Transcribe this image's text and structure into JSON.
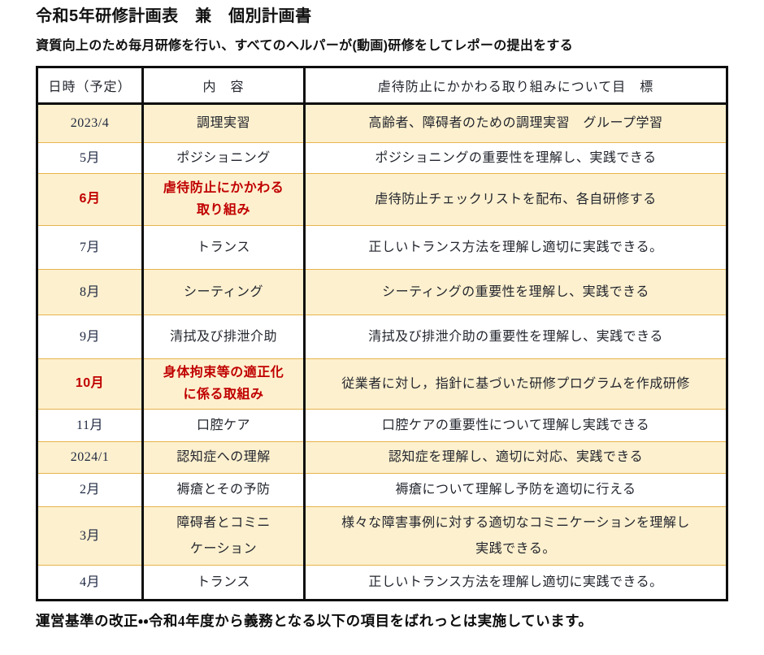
{
  "page": {
    "title": "令和5年研修計画表　兼　個別計画書",
    "subtitle": "資質向上のため毎月研修を行い、すべてのヘルパーが(動画)研修をしてレポーの提出をする",
    "footer_note": "運営基準の改正・・令和4年度から義務となる以下の項目をばれっとは実施しています。"
  },
  "table": {
    "headers": [
      "日時（予定）",
      "内　容",
      "虐待防止にかかわる取り組みについて目　標"
    ],
    "rows": [
      {
        "date": "2023/4",
        "content": "調理実習",
        "goal": "高齢者、障碍者のための調理実習　グループ学習",
        "shaded": true,
        "highlight": false
      },
      {
        "date": "5月",
        "content": "ポジショニング",
        "goal": "ポジショニングの重要性を理解し、実践できる",
        "shaded": false,
        "highlight": false
      },
      {
        "date": "6月",
        "content": "虐待防止にかかわる\n取り組み",
        "goal": "虐待防止チェックリストを配布、各自研修する",
        "shaded": true,
        "highlight": true
      },
      {
        "date": "7月",
        "content": "トランス",
        "goal": "正しいトランス方法を理解し適切に実践できる。",
        "shaded": false,
        "highlight": false
      },
      {
        "date": "8月",
        "content": "シーティング",
        "goal": "シーティングの重要性を理解し、実践できる",
        "shaded": true,
        "highlight": false
      },
      {
        "date": "9月",
        "content": "清拭及び排泄介助",
        "goal": "清拭及び排泄介助の重要性を理解し、実践できる",
        "shaded": false,
        "highlight": false
      },
      {
        "date": "10月",
        "content": "身体拘束等の適正化\nに係る取組み",
        "goal": "従業者に対し，指針に基づいた研修プログラムを作成研修",
        "shaded": true,
        "highlight": true
      },
      {
        "date": "11月",
        "content": "口腔ケア",
        "goal": "口腔ケアの重要性について理解し実践できる",
        "shaded": false,
        "highlight": false
      },
      {
        "date": "2024/1",
        "content": "認知症への理解",
        "goal": "認知症を理解し、適切に対応、実践できる",
        "shaded": true,
        "highlight": false
      },
      {
        "date": "2月",
        "content": "褥瘡とその予防",
        "goal": "褥瘡について理解し予防を適切に行える",
        "shaded": false,
        "highlight": false
      },
      {
        "date": "3月",
        "content": "障碍者とコミニ\nケーション",
        "goal": "様々な障害事例に対する適切なコミニケーションを理解し\n実践できる。",
        "shaded": true,
        "highlight": false
      },
      {
        "date": "4月",
        "content": "トランス",
        "goal": "正しいトランス方法を理解し適切に実践できる。",
        "shaded": false,
        "highlight": false
      }
    ]
  },
  "colors": {
    "shaded_row_background": "#fdf0ce",
    "gold_row_separator": "#e7b44d",
    "highlight_text": "#c00000",
    "border_black": "#0e0e0e"
  }
}
